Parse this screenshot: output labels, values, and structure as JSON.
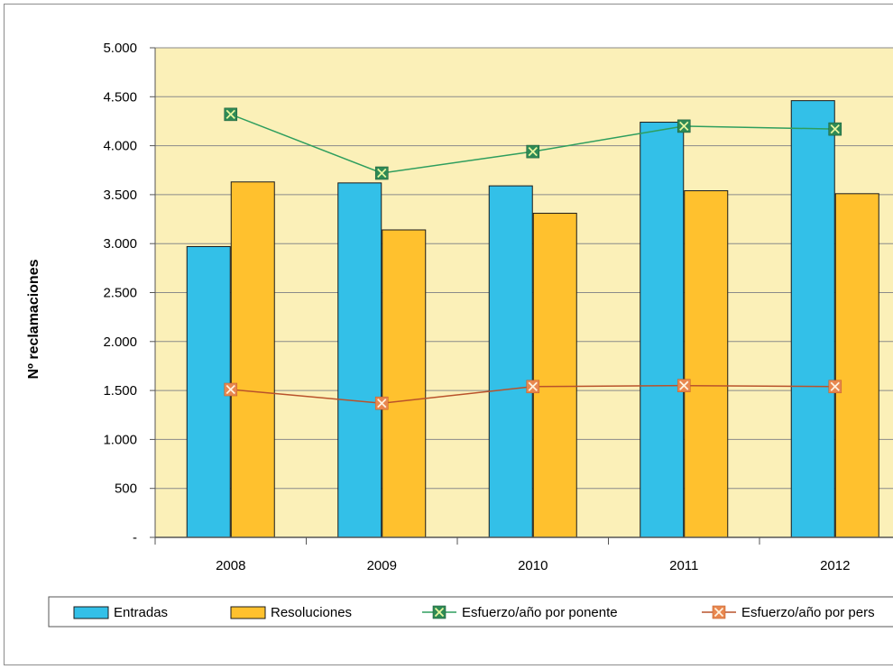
{
  "chart_data": {
    "type": "bar",
    "title": "",
    "xlabel": "",
    "ylabel": "Nº reclamaciones",
    "ylim": [
      0,
      5000
    ],
    "y_ticks": [
      0,
      500,
      1000,
      1500,
      2000,
      2500,
      3000,
      3500,
      4000,
      4500,
      5000
    ],
    "y_tick_labels": [
      "-",
      "500",
      "1.000",
      "1.500",
      "2.000",
      "2.500",
      "3.000",
      "3.500",
      "4.000",
      "4.500",
      "5.000"
    ],
    "categories": [
      "2008",
      "2009",
      "2010",
      "2011",
      "2012"
    ],
    "grid": true,
    "legend_position": "bottom",
    "series": [
      {
        "name": "Entradas",
        "kind": "bar",
        "color": "#33c0e8",
        "values": [
          2970,
          3620,
          3590,
          4240,
          4460
        ]
      },
      {
        "name": "Resoluciones",
        "kind": "bar",
        "color": "#ffc12e",
        "values": [
          3630,
          3140,
          3310,
          3540,
          3510
        ]
      },
      {
        "name": "Esfuerzo/año por ponente",
        "kind": "line",
        "color": "#2e9e5e",
        "marker_color": "#2f8a55",
        "values": [
          4320,
          3720,
          3940,
          4200,
          4170
        ]
      },
      {
        "name": "Esfuerzo/año por pers",
        "kind": "line",
        "color": "#b9522b",
        "marker_color": "#e8874f",
        "values": [
          1510,
          1370,
          1540,
          1550,
          1540
        ]
      }
    ]
  }
}
